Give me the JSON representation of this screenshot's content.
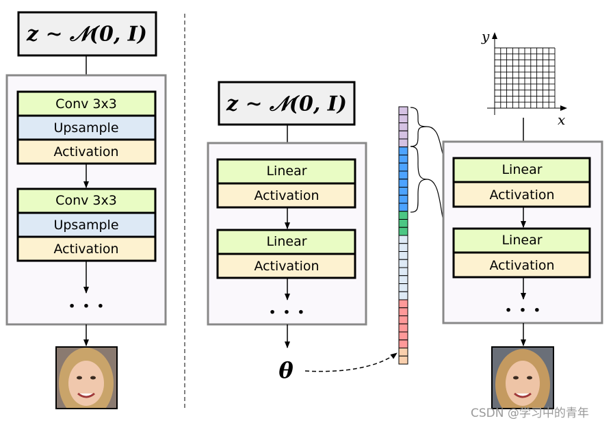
{
  "formula": "z ∼ 𝒩(0, I)",
  "left_net": {
    "blocks": [
      {
        "conv": "Conv 3x3",
        "upsample": "Upsample",
        "activation": "Activation"
      },
      {
        "conv": "Conv 3x3",
        "upsample": "Upsample",
        "activation": "Activation"
      }
    ],
    "dots": "· · ·"
  },
  "middle_net": {
    "blocks": [
      {
        "linear": "Linear",
        "activation": "Activation"
      },
      {
        "linear": "Linear",
        "activation": "Activation"
      }
    ],
    "dots": "· · ·",
    "theta": "θ"
  },
  "right_net": {
    "blocks": [
      {
        "linear": "Linear",
        "activation": "Activation"
      },
      {
        "linear": "Linear",
        "activation": "Activation"
      }
    ],
    "dots": "· · ·",
    "x_axis": "x",
    "y_axis": "y"
  },
  "param_vector": {
    "segments": [
      {
        "color": "#d5c2e3",
        "count": 5
      },
      {
        "color": "#4da3ff",
        "count": 8
      },
      {
        "color": "#4cc784",
        "count": 3
      },
      {
        "color": "#deeaf6",
        "count": 8
      },
      {
        "color": "#ff9999",
        "count": 6
      },
      {
        "color": "#f9cfad",
        "count": 2
      }
    ]
  },
  "colors": {
    "conv": "#e9fcc4",
    "linear": "#e9fcc4",
    "upsample": "#dde9f5",
    "activation": "#fdf2d0",
    "noise_box": "#f0f0f0",
    "net_box_fill": "#faf8fc",
    "net_box_border": "#888888"
  },
  "watermark": "CSDN @学习中的青年"
}
